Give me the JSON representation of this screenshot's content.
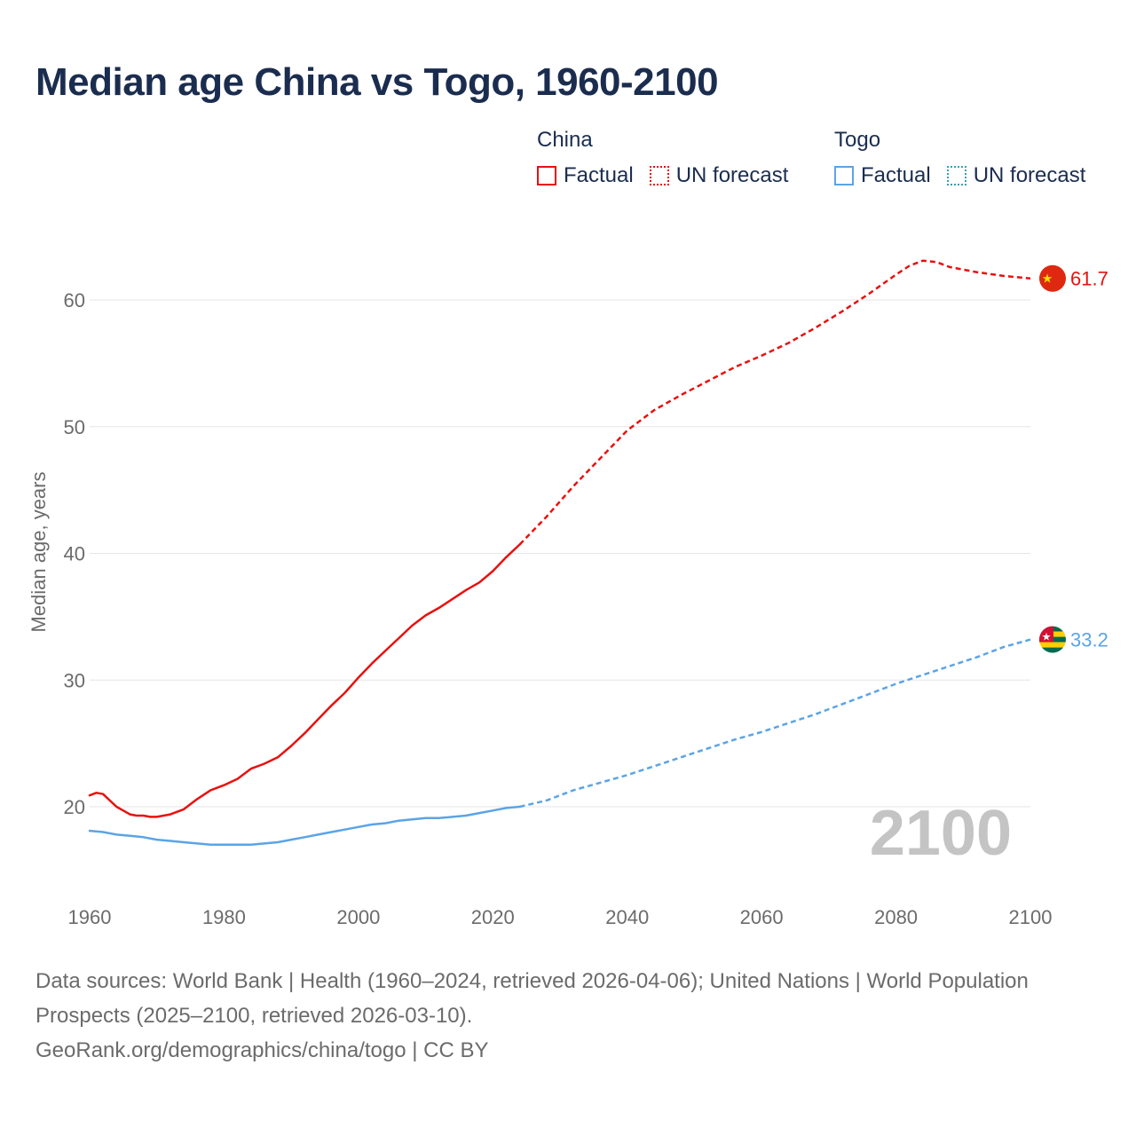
{
  "title": "Median age China vs Togo, 1960-2100",
  "legend": {
    "china": {
      "name": "China",
      "factual": "Factual",
      "forecast": "UN forecast",
      "color": "#e8110f"
    },
    "togo": {
      "name": "Togo",
      "factual": "Factual",
      "forecast": "UN forecast",
      "color": "#5ba4e6"
    }
  },
  "year_watermark": "2100",
  "footer": {
    "sources": "Data sources: World Bank | Health (1960–2024, retrieved 2026-04-06); United Nations | World Population Prospects (2025–2100, retrieved 2026-03-10).",
    "link": "GeoRank.org/demographics/china/togo | CC BY"
  },
  "chart_data": {
    "type": "line",
    "title": "Median age China vs Togo, 1960-2100",
    "xlabel": "",
    "ylabel": "Median age, years",
    "xlim": [
      1960,
      2100
    ],
    "ylim": [
      14,
      66
    ],
    "x_ticks": [
      1960,
      1980,
      2000,
      2020,
      2040,
      2060,
      2080,
      2100
    ],
    "y_ticks": [
      20,
      30,
      40,
      50,
      60
    ],
    "grid": true,
    "series": [
      {
        "name": "China",
        "segment": "Factual",
        "color": "#e8110f",
        "style": "solid",
        "points": [
          [
            1960,
            20.9
          ],
          [
            1961,
            21.1
          ],
          [
            1962,
            21.0
          ],
          [
            1963,
            20.5
          ],
          [
            1964,
            20.0
          ],
          [
            1965,
            19.7
          ],
          [
            1966,
            19.4
          ],
          [
            1967,
            19.3
          ],
          [
            1968,
            19.3
          ],
          [
            1969,
            19.2
          ],
          [
            1970,
            19.2
          ],
          [
            1972,
            19.4
          ],
          [
            1974,
            19.8
          ],
          [
            1976,
            20.6
          ],
          [
            1978,
            21.3
          ],
          [
            1980,
            21.7
          ],
          [
            1982,
            22.2
          ],
          [
            1984,
            23.0
          ],
          [
            1986,
            23.4
          ],
          [
            1988,
            23.9
          ],
          [
            1990,
            24.8
          ],
          [
            1992,
            25.8
          ],
          [
            1994,
            26.9
          ],
          [
            1996,
            28.0
          ],
          [
            1998,
            29.0
          ],
          [
            2000,
            30.2
          ],
          [
            2002,
            31.3
          ],
          [
            2004,
            32.3
          ],
          [
            2006,
            33.3
          ],
          [
            2008,
            34.3
          ],
          [
            2010,
            35.1
          ],
          [
            2012,
            35.7
          ],
          [
            2014,
            36.4
          ],
          [
            2016,
            37.1
          ],
          [
            2018,
            37.7
          ],
          [
            2020,
            38.6
          ],
          [
            2022,
            39.7
          ],
          [
            2024,
            40.7
          ]
        ]
      },
      {
        "name": "China",
        "segment": "UN forecast",
        "color": "#e8110f",
        "style": "dashed",
        "points": [
          [
            2024,
            40.7
          ],
          [
            2028,
            42.9
          ],
          [
            2032,
            45.3
          ],
          [
            2036,
            47.5
          ],
          [
            2040,
            49.7
          ],
          [
            2044,
            51.3
          ],
          [
            2048,
            52.5
          ],
          [
            2052,
            53.6
          ],
          [
            2056,
            54.7
          ],
          [
            2060,
            55.6
          ],
          [
            2064,
            56.6
          ],
          [
            2068,
            57.8
          ],
          [
            2072,
            59.1
          ],
          [
            2076,
            60.5
          ],
          [
            2080,
            62.0
          ],
          [
            2082,
            62.7
          ],
          [
            2084,
            63.1
          ],
          [
            2086,
            63.0
          ],
          [
            2088,
            62.6
          ],
          [
            2092,
            62.2
          ],
          [
            2096,
            61.9
          ],
          [
            2100,
            61.7
          ]
        ]
      },
      {
        "name": "Togo",
        "segment": "Factual",
        "color": "#5ba4e6",
        "style": "solid",
        "points": [
          [
            1960,
            18.1
          ],
          [
            1962,
            18.0
          ],
          [
            1964,
            17.8
          ],
          [
            1966,
            17.7
          ],
          [
            1968,
            17.6
          ],
          [
            1970,
            17.4
          ],
          [
            1972,
            17.3
          ],
          [
            1974,
            17.2
          ],
          [
            1976,
            17.1
          ],
          [
            1978,
            17.0
          ],
          [
            1980,
            17.0
          ],
          [
            1982,
            17.0
          ],
          [
            1984,
            17.0
          ],
          [
            1986,
            17.1
          ],
          [
            1988,
            17.2
          ],
          [
            1990,
            17.4
          ],
          [
            1992,
            17.6
          ],
          [
            1994,
            17.8
          ],
          [
            1996,
            18.0
          ],
          [
            1998,
            18.2
          ],
          [
            2000,
            18.4
          ],
          [
            2002,
            18.6
          ],
          [
            2004,
            18.7
          ],
          [
            2006,
            18.9
          ],
          [
            2008,
            19.0
          ],
          [
            2010,
            19.1
          ],
          [
            2012,
            19.1
          ],
          [
            2014,
            19.2
          ],
          [
            2016,
            19.3
          ],
          [
            2018,
            19.5
          ],
          [
            2020,
            19.7
          ],
          [
            2022,
            19.9
          ],
          [
            2024,
            20.0
          ]
        ]
      },
      {
        "name": "Togo",
        "segment": "UN forecast",
        "color": "#5ba4e6",
        "style": "dashed",
        "points": [
          [
            2024,
            20.0
          ],
          [
            2028,
            20.5
          ],
          [
            2032,
            21.3
          ],
          [
            2036,
            21.9
          ],
          [
            2040,
            22.5
          ],
          [
            2044,
            23.2
          ],
          [
            2048,
            23.9
          ],
          [
            2052,
            24.6
          ],
          [
            2056,
            25.3
          ],
          [
            2060,
            25.9
          ],
          [
            2064,
            26.6
          ],
          [
            2068,
            27.3
          ],
          [
            2072,
            28.1
          ],
          [
            2076,
            28.9
          ],
          [
            2080,
            29.7
          ],
          [
            2084,
            30.4
          ],
          [
            2088,
            31.1
          ],
          [
            2092,
            31.8
          ],
          [
            2096,
            32.6
          ],
          [
            2100,
            33.2
          ]
        ]
      }
    ],
    "end_labels": [
      {
        "series": "China",
        "value": 61.7,
        "label": "61.7",
        "color": "#e8110f"
      },
      {
        "series": "Togo",
        "value": 33.2,
        "label": "33.2",
        "color": "#5ba4e6"
      }
    ]
  }
}
